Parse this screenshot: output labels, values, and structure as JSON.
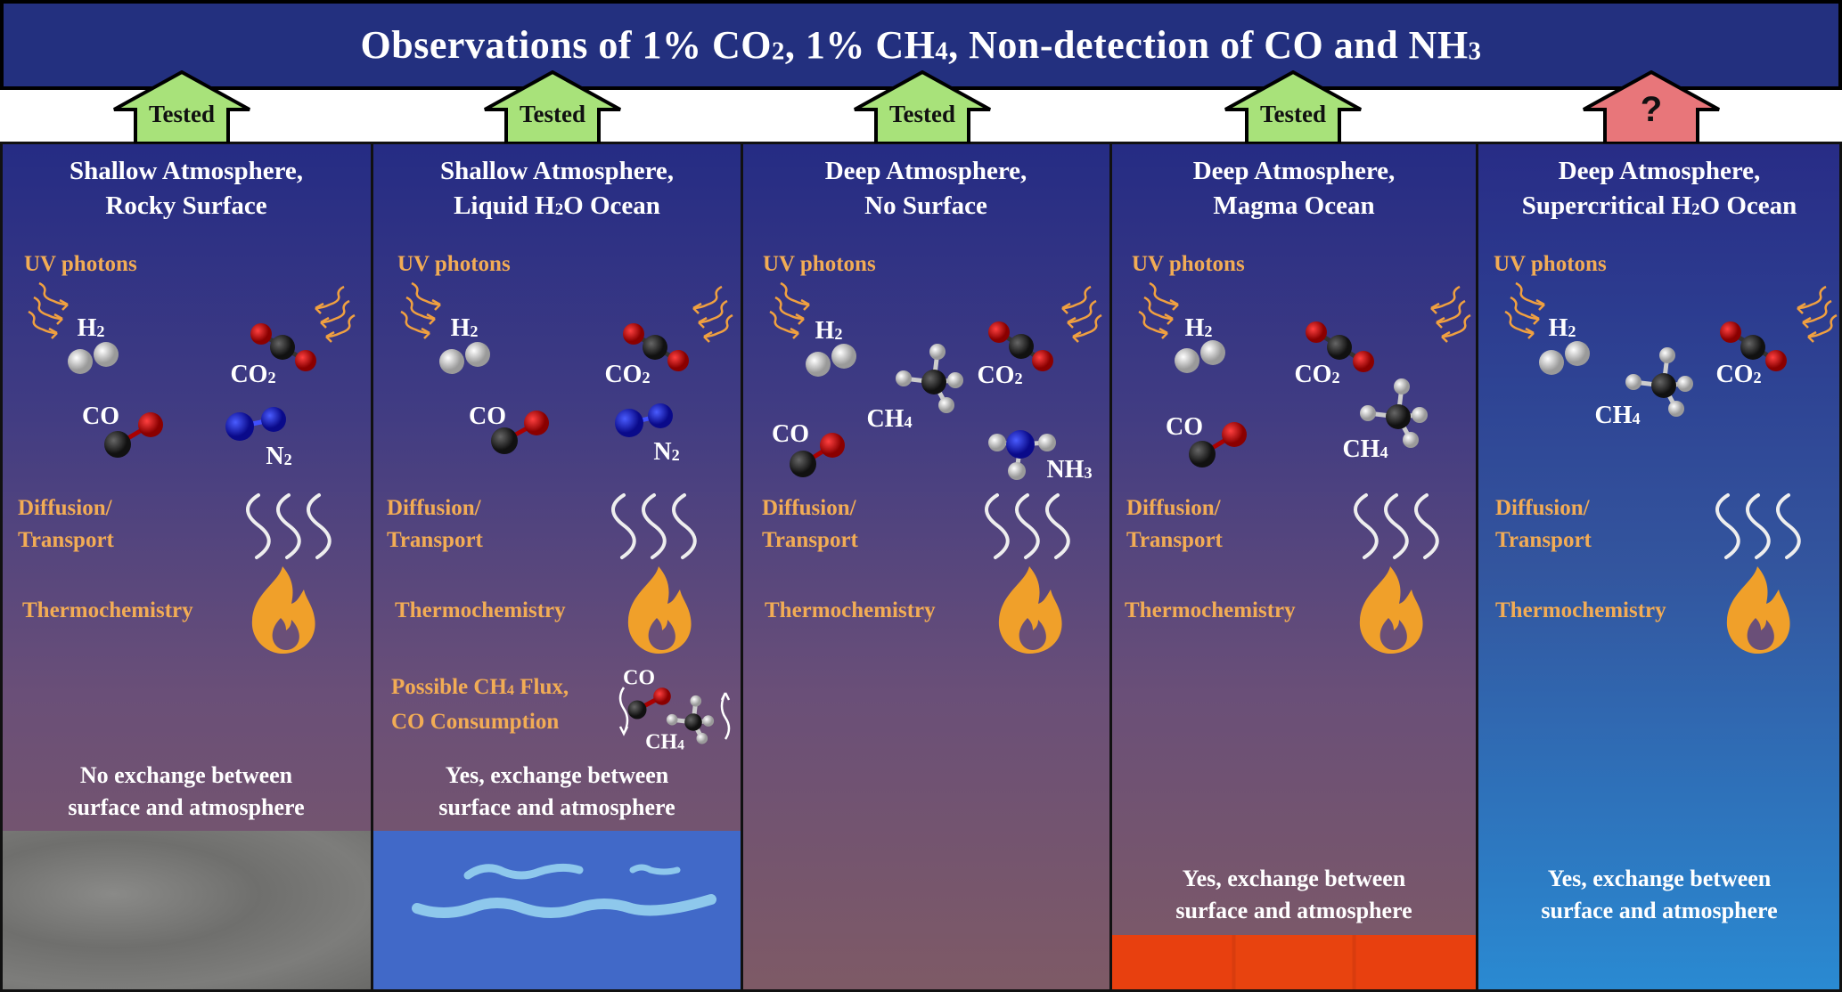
{
  "header": {
    "title_parts": [
      "Observations of 1% CO",
      "2",
      ", 1% CH",
      "4",
      ", Non-detection of CO and NH",
      "3"
    ]
  },
  "verdicts": [
    {
      "label": "Tested",
      "color": "#a8e27a"
    },
    {
      "label": "Tested",
      "color": "#a8e27a"
    },
    {
      "label": "Tested",
      "color": "#a8e27a"
    },
    {
      "label": "Tested",
      "color": "#a8e27a"
    },
    {
      "label": "?",
      "color": "#e8767a"
    }
  ],
  "panels": [
    {
      "title1": "Shallow Atmosphere,",
      "title2": "Rocky Surface",
      "exchange1": "No exchange between",
      "exchange2": "surface and atmosphere",
      "surface": "rock"
    },
    {
      "title1": "Shallow Atmosphere,",
      "title2a": "Liquid H",
      "title2sub": "2",
      "title2b": "O Ocean",
      "exchange1": "Yes, exchange between",
      "exchange2": "surface and atmosphere",
      "surface": "water"
    },
    {
      "title1": "Deep Atmosphere,",
      "title2": "No Surface",
      "surface": "none"
    },
    {
      "title1": "Deep Atmosphere,",
      "title2": "Magma Ocean",
      "exchange1": "Yes, exchange between",
      "exchange2": "surface and atmosphere",
      "surface": "magma"
    },
    {
      "title1": "Deep Atmosphere,",
      "title2a": "Supercritical H",
      "title2sub": "2",
      "title2b": "O Ocean",
      "exchange1": "Yes, exchange between",
      "exchange2": "surface and atmosphere",
      "surface": "supercritical water"
    }
  ],
  "labels": {
    "uv": "UV photons",
    "diffusion1": "Diffusion/",
    "diffusion2": "Transport",
    "thermo": "Thermochemistry",
    "flux1a": "Possible CH",
    "flux1sub": "4",
    "flux1b": " Flux,",
    "flux2": "CO Consumption"
  },
  "molecules": {
    "H": "H",
    "C": "C",
    "O": "O",
    "N": "N",
    "CH": "CH",
    "NH": "NH",
    "two": "2",
    "three": "3",
    "four": "4",
    "CO": "CO"
  },
  "colors": {
    "header": "#23307f",
    "tested": "#a8e27a",
    "unknown": "#e8767a",
    "orange_text": "#f2ac55",
    "ocean": "#4169c8",
    "magma": "#e8400f"
  }
}
